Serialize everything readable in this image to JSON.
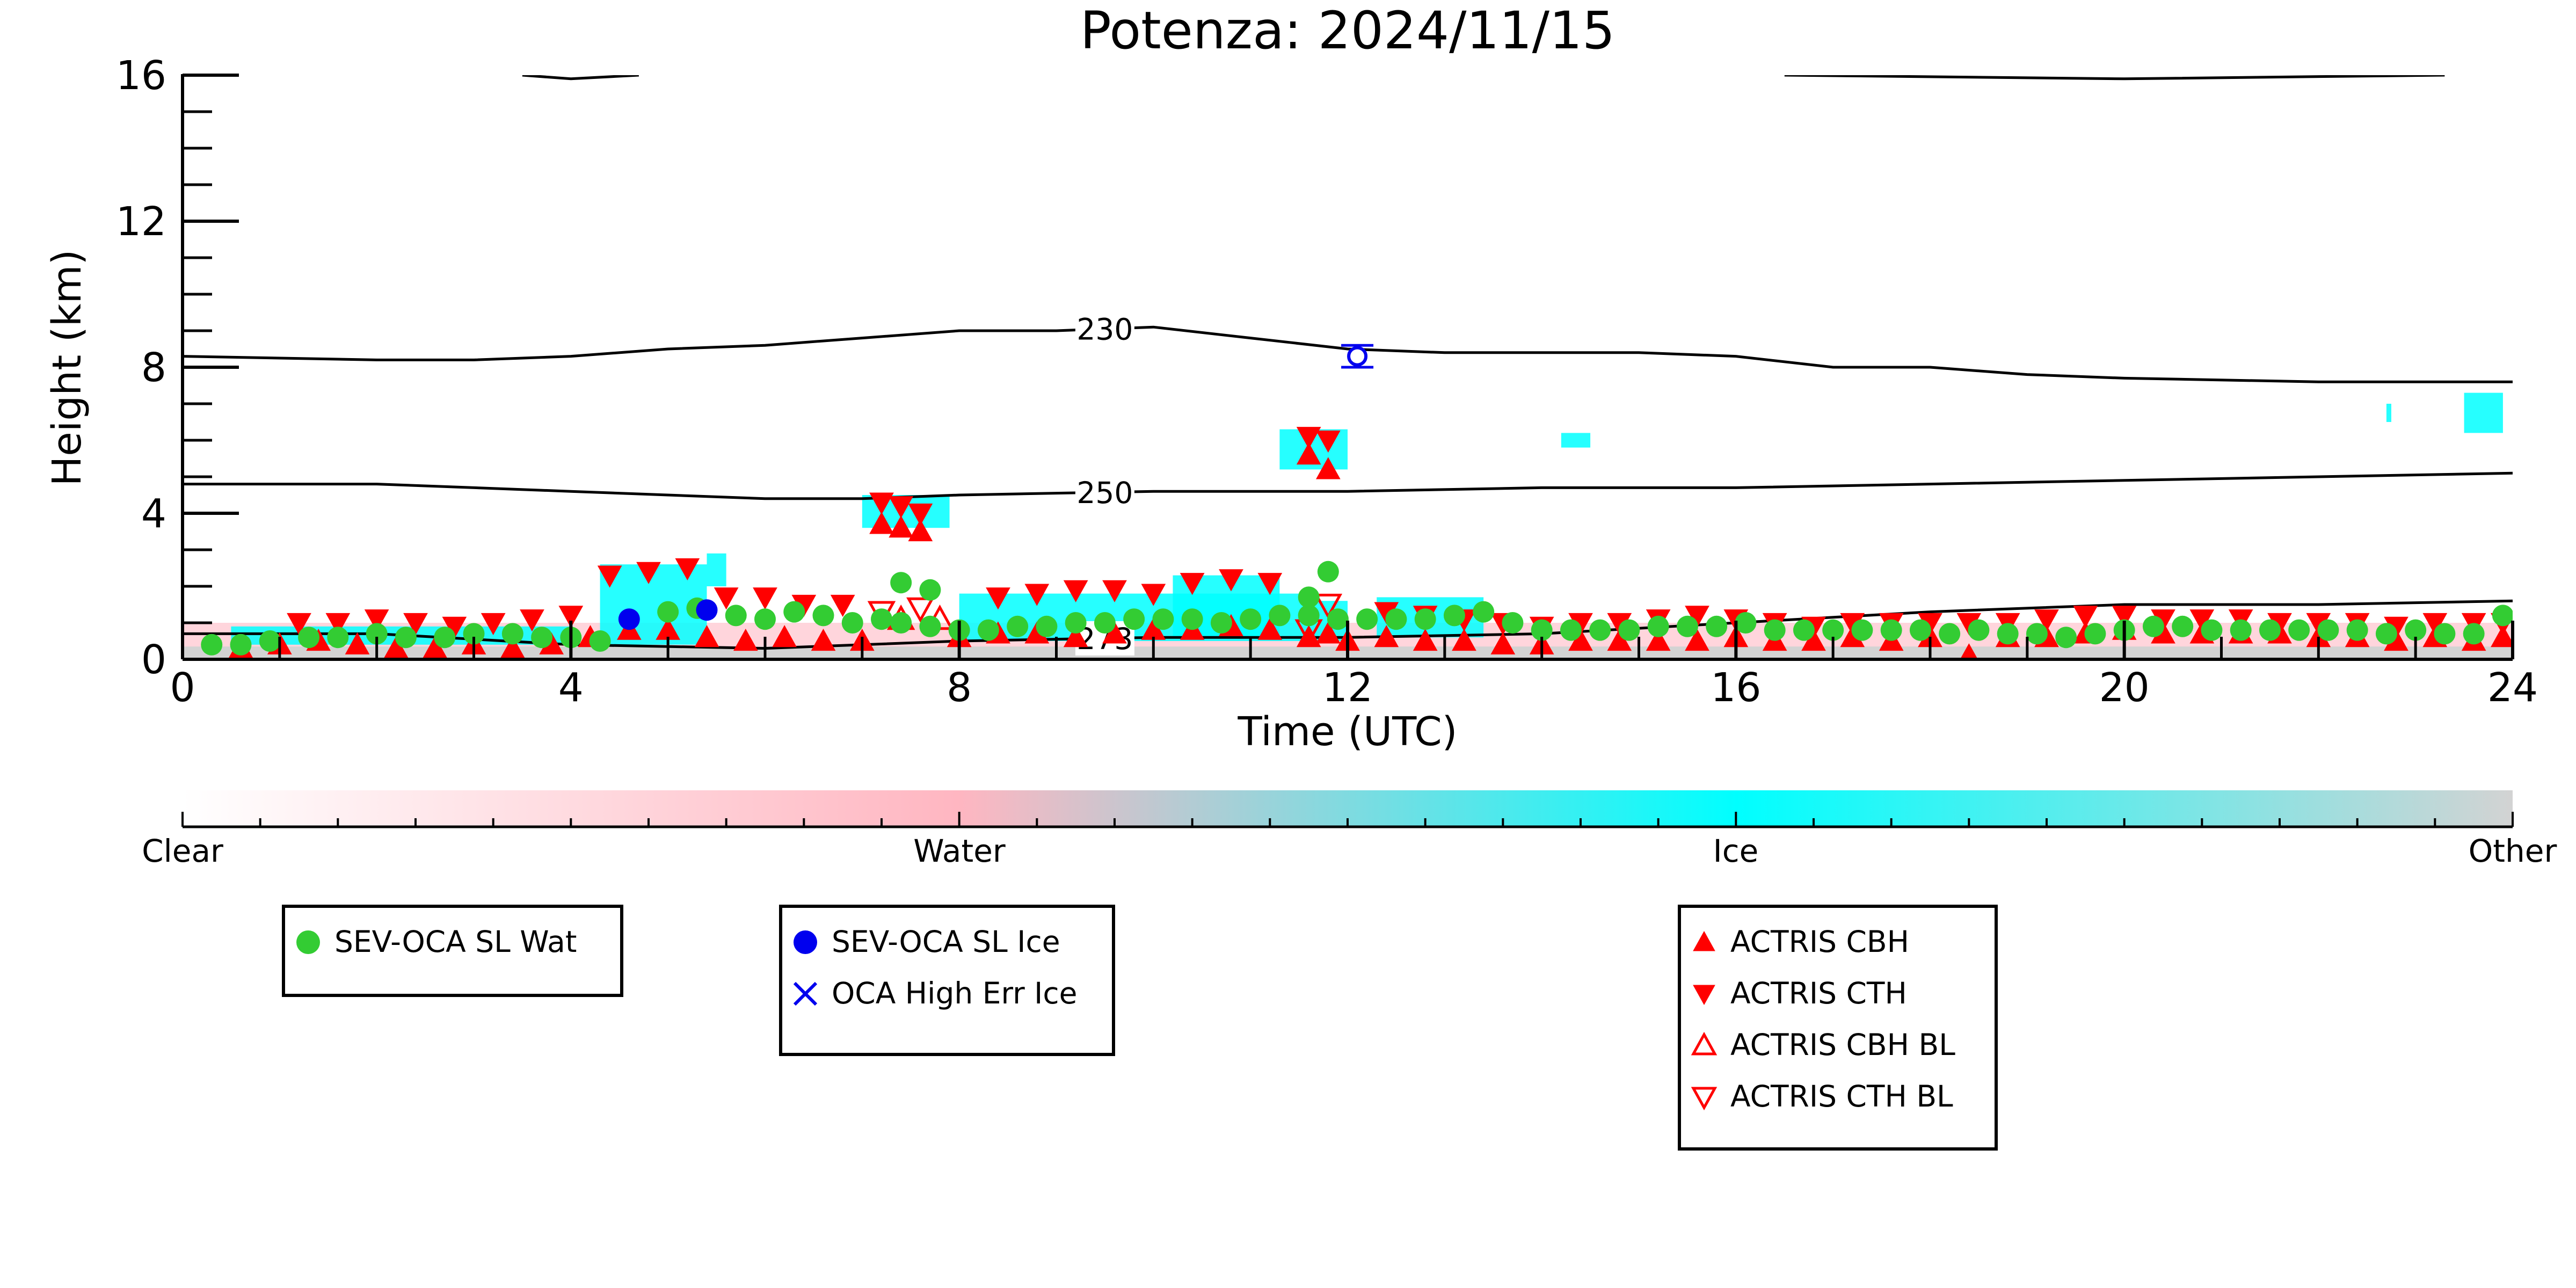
{
  "chart_data": {
    "type": "scatter",
    "title": "Potenza: 2024/11/15",
    "xlabel": "Time (UTC)",
    "ylabel": "Height (km)",
    "xlim": [
      0,
      24
    ],
    "ylim": [
      0,
      16
    ],
    "x_ticks": [
      "0",
      "4",
      "8",
      "12",
      "16",
      "20",
      "24"
    ],
    "y_ticks": [
      "0",
      "4",
      "8",
      "12",
      "16"
    ],
    "contours": [
      {
        "label": "230",
        "label_x": 9.5,
        "points": [
          [
            0,
            8.3
          ],
          [
            2,
            8.2
          ],
          [
            3,
            8.2
          ],
          [
            4,
            8.3
          ],
          [
            5,
            8.5
          ],
          [
            6,
            8.6
          ],
          [
            7,
            8.8
          ],
          [
            8,
            9.0
          ],
          [
            9,
            9.0
          ],
          [
            10,
            9.1
          ],
          [
            11,
            8.8
          ],
          [
            12,
            8.5
          ],
          [
            13,
            8.4
          ],
          [
            14,
            8.4
          ],
          [
            15,
            8.4
          ],
          [
            16,
            8.3
          ],
          [
            17,
            8.0
          ],
          [
            18,
            8.0
          ],
          [
            19,
            7.8
          ],
          [
            20,
            7.7
          ],
          [
            22,
            7.6
          ],
          [
            24,
            7.6
          ]
        ]
      },
      {
        "label": "250",
        "label_x": 9.5,
        "points": [
          [
            0,
            4.8
          ],
          [
            2,
            4.8
          ],
          [
            4,
            4.6
          ],
          [
            6,
            4.4
          ],
          [
            7,
            4.4
          ],
          [
            8,
            4.5
          ],
          [
            10,
            4.6
          ],
          [
            12,
            4.6
          ],
          [
            14,
            4.7
          ],
          [
            16,
            4.7
          ],
          [
            18,
            4.8
          ],
          [
            20,
            4.9
          ],
          [
            22,
            5.0
          ],
          [
            24,
            5.1
          ]
        ]
      },
      {
        "label": "273",
        "label_x": 9.5,
        "points": [
          [
            0,
            0.7
          ],
          [
            2,
            0.7
          ],
          [
            4,
            0.4
          ],
          [
            6,
            0.3
          ],
          [
            8,
            0.5
          ],
          [
            10,
            0.6
          ],
          [
            12,
            0.6
          ],
          [
            14,
            0.7
          ],
          [
            16,
            1.0
          ],
          [
            18,
            1.3
          ],
          [
            20,
            1.5
          ],
          [
            22,
            1.5
          ],
          [
            24,
            1.6
          ]
        ]
      }
    ],
    "top_contours": [
      {
        "points": [
          [
            3.5,
            16
          ],
          [
            4.0,
            15.9
          ],
          [
            4.7,
            16
          ]
        ]
      },
      {
        "points": [
          [
            16.5,
            16
          ],
          [
            20,
            15.9
          ],
          [
            23.3,
            16
          ]
        ]
      }
    ],
    "ice_regions": [
      {
        "x0": 4.3,
        "x1": 5.4,
        "y0": 0.4,
        "y1": 2.6
      },
      {
        "x0": 5.4,
        "x1": 5.6,
        "y0": 2.0,
        "y1": 2.9
      },
      {
        "x0": 7.0,
        "x1": 7.9,
        "y0": 3.6,
        "y1": 4.5
      },
      {
        "x0": 8.0,
        "x1": 11.6,
        "y0": 0.5,
        "y1": 1.8
      },
      {
        "x0": 10.2,
        "x1": 11.3,
        "y0": 0.6,
        "y1": 2.3
      },
      {
        "x0": 11.3,
        "x1": 12.0,
        "y0": 5.2,
        "y1": 6.3
      },
      {
        "x0": 11.6,
        "x1": 12.0,
        "y0": 0.5,
        "y1": 1.6
      },
      {
        "x0": 12.3,
        "x1": 13.4,
        "y0": 0.6,
        "y1": 1.7
      },
      {
        "x0": 0.5,
        "x1": 4.0,
        "y0": 0.4,
        "y1": 0.9
      },
      {
        "x0": 14.2,
        "x1": 14.5,
        "y0": 5.8,
        "y1": 6.2
      },
      {
        "x0": 23.5,
        "x1": 23.9,
        "y0": 6.2,
        "y1": 7.3
      },
      {
        "x0": 22.7,
        "x1": 22.75,
        "y0": 6.5,
        "y1": 7.0
      }
    ],
    "ground_band": {
      "ymin": 0,
      "ymax": 1.0
    },
    "series": [
      {
        "name": "SEV-OCA SL Wat",
        "marker": "circle",
        "color": "#33cc33",
        "x": [
          0.3,
          0.6,
          0.9,
          1.3,
          1.6,
          2.0,
          2.3,
          2.7,
          3.0,
          3.4,
          3.7,
          4.0,
          4.3,
          5.0,
          5.3,
          5.7,
          6.0,
          6.3,
          6.6,
          6.9,
          7.2,
          7.4,
          7.7,
          8.0,
          8.3,
          8.6,
          8.9,
          9.2,
          9.5,
          9.8,
          10.1,
          10.4,
          10.7,
          11.0,
          11.3,
          11.6,
          11.9,
          12.2,
          12.5,
          12.8,
          13.1,
          13.4,
          13.7,
          14.0,
          14.3,
          14.6,
          14.9,
          15.2,
          15.5,
          15.8,
          16.1,
          16.4,
          16.7,
          17.0,
          17.3,
          17.6,
          17.9,
          18.2,
          18.5,
          18.8,
          19.1,
          19.4,
          19.7,
          20.0,
          20.3,
          20.6,
          20.9,
          21.2,
          21.5,
          21.8,
          22.1,
          22.4,
          22.7,
          23.0,
          23.3,
          23.6,
          23.9,
          7.4,
          7.7,
          11.6,
          11.8
        ],
        "y": [
          0.4,
          0.4,
          0.5,
          0.6,
          0.6,
          0.7,
          0.6,
          0.6,
          0.7,
          0.7,
          0.6,
          0.6,
          0.5,
          1.3,
          1.4,
          1.2,
          1.1,
          1.3,
          1.2,
          1.0,
          1.1,
          1.0,
          0.9,
          0.8,
          0.8,
          0.9,
          0.9,
          1.0,
          1.0,
          1.1,
          1.1,
          1.1,
          1.0,
          1.1,
          1.2,
          1.2,
          1.1,
          1.1,
          1.1,
          1.1,
          1.2,
          1.3,
          1.0,
          0.8,
          0.8,
          0.8,
          0.8,
          0.9,
          0.9,
          0.9,
          1.0,
          0.8,
          0.8,
          0.8,
          0.8,
          0.8,
          0.8,
          0.7,
          0.8,
          0.7,
          0.7,
          0.6,
          0.7,
          0.8,
          0.9,
          0.9,
          0.8,
          0.8,
          0.8,
          0.8,
          0.8,
          0.8,
          0.7,
          0.8,
          0.7,
          0.7,
          1.2,
          2.1,
          1.9,
          1.7,
          2.4
        ]
      },
      {
        "name": "SEV-OCA SL Ice",
        "marker": "circle",
        "color": "#0000ee",
        "x": [
          4.6,
          5.4
        ],
        "y": [
          1.1,
          1.35
        ]
      },
      {
        "name": "OCA High Err Ice",
        "marker": "x",
        "color": "#0000ee",
        "x": [
          12.1
        ],
        "y": [
          8.3
        ],
        "error": [
          0.6
        ],
        "open": true
      },
      {
        "name": "ACTRIS CBH",
        "marker": "triangle-up",
        "color": "#ff0000",
        "x": [
          0.6,
          1.0,
          1.4,
          1.8,
          2.2,
          2.6,
          3.0,
          3.4,
          3.8,
          4.2,
          4.6,
          5.0,
          5.4,
          5.8,
          6.2,
          6.6,
          7.0,
          7.2,
          7.4,
          7.6,
          8.0,
          8.4,
          8.8,
          9.2,
          9.6,
          10.0,
          10.4,
          10.8,
          11.2,
          11.6,
          11.8,
          12.0,
          12.4,
          12.8,
          13.2,
          13.6,
          14.0,
          14.4,
          14.8,
          15.2,
          15.6,
          16.0,
          16.4,
          16.8,
          17.2,
          17.6,
          18.0,
          18.4,
          18.8,
          19.2,
          19.6,
          20.0,
          20.4,
          20.8,
          21.2,
          21.6,
          22.0,
          22.4,
          22.8,
          23.2,
          23.6,
          23.9,
          11.6,
          11.8
        ],
        "y": [
          0.3,
          0.4,
          0.5,
          0.4,
          0.3,
          0.3,
          0.4,
          0.3,
          0.4,
          0.6,
          0.8,
          0.8,
          0.6,
          0.5,
          0.6,
          0.5,
          0.5,
          3.7,
          3.6,
          3.5,
          0.6,
          0.7,
          0.7,
          0.6,
          0.7,
          0.8,
          0.8,
          0.9,
          0.8,
          0.6,
          0.7,
          0.5,
          0.6,
          0.5,
          0.5,
          0.4,
          0.4,
          0.5,
          0.5,
          0.5,
          0.5,
          0.6,
          0.5,
          0.5,
          0.6,
          0.5,
          0.6,
          0.1,
          0.6,
          0.6,
          0.7,
          0.8,
          0.7,
          0.7,
          0.7,
          0.7,
          0.6,
          0.6,
          0.5,
          0.6,
          0.5,
          0.6,
          5.6,
          5.2
        ]
      },
      {
        "name": "ACTRIS CTH",
        "marker": "triangle-down",
        "color": "#ff0000",
        "x": [
          1.2,
          1.6,
          2.0,
          2.4,
          2.8,
          3.2,
          3.6,
          4.0,
          4.4,
          4.8,
          5.2,
          5.6,
          6.0,
          6.4,
          6.8,
          7.2,
          7.4,
          7.6,
          8.4,
          8.8,
          9.2,
          9.6,
          10.0,
          10.4,
          10.8,
          11.2,
          11.6,
          11.8,
          12.4,
          12.8,
          13.2,
          13.6,
          14.0,
          14.4,
          14.8,
          15.2,
          15.6,
          16.0,
          16.4,
          16.8,
          17.2,
          17.6,
          18.0,
          18.4,
          18.8,
          19.2,
          19.6,
          20.0,
          20.4,
          20.8,
          21.2,
          21.6,
          22.0,
          22.4,
          22.8,
          23.2,
          23.6,
          23.9
        ],
        "y": [
          1.0,
          1.0,
          1.1,
          1.0,
          0.9,
          1.0,
          1.1,
          1.2,
          2.3,
          2.4,
          2.5,
          1.7,
          1.7,
          1.5,
          1.5,
          4.3,
          4.2,
          4.0,
          1.7,
          1.8,
          1.9,
          1.9,
          1.8,
          2.1,
          2.2,
          2.1,
          6.1,
          6.0,
          1.3,
          1.2,
          1.1,
          1.0,
          0.9,
          1.0,
          1.0,
          1.1,
          1.2,
          1.1,
          1.0,
          0.9,
          1.0,
          1.0,
          1.0,
          1.0,
          1.0,
          1.1,
          1.2,
          1.2,
          1.1,
          1.1,
          1.1,
          1.0,
          1.0,
          1.0,
          0.9,
          1.0,
          1.0,
          1.0
        ]
      },
      {
        "name": "ACTRIS CBH BL",
        "marker": "triangle-up-open",
        "color": "#ff0000",
        "x": [
          7.4,
          7.8
        ],
        "y": [
          1.1,
          1.1
        ]
      },
      {
        "name": "ACTRIS CTH BL",
        "marker": "triangle-down-open",
        "color": "#ff0000",
        "x": [
          7.2,
          7.6,
          11.6,
          11.8
        ],
        "y": [
          1.3,
          1.4,
          0.8,
          1.5
        ]
      }
    ],
    "colorbar": {
      "labels": [
        "Clear",
        "Water",
        "Ice",
        "Other"
      ],
      "colors": [
        "#ffffff",
        "#ffb6c1",
        "#00ffff",
        "#d3d3d3"
      ]
    },
    "legend": [
      {
        "entries": [
          {
            "label": "SEV-OCA SL Wat",
            "marker": "circle",
            "color": "#33cc33"
          }
        ]
      },
      {
        "entries": [
          {
            "label": "SEV-OCA SL Ice",
            "marker": "circle",
            "color": "#0000ee"
          },
          {
            "label": "OCA High Err Ice",
            "marker": "x",
            "color": "#0000ee"
          }
        ]
      },
      {
        "entries": [
          {
            "label": "ACTRIS CBH",
            "marker": "triangle-up",
            "color": "#ff0000"
          },
          {
            "label": "ACTRIS CTH",
            "marker": "triangle-down",
            "color": "#ff0000"
          },
          {
            "label": "ACTRIS CBH BL",
            "marker": "triangle-up-open",
            "color": "#ff0000"
          },
          {
            "label": "ACTRIS CTH BL",
            "marker": "triangle-down-open",
            "color": "#ff0000"
          }
        ]
      }
    ]
  }
}
